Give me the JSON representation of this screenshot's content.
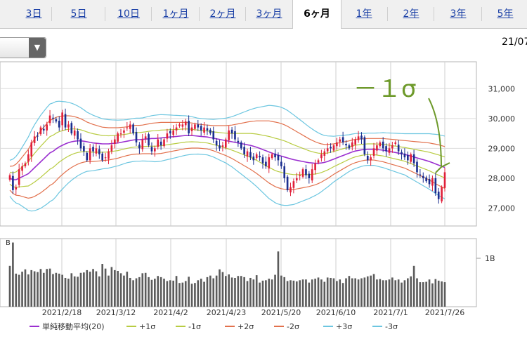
{
  "tabs": [
    {
      "label": "3日",
      "active": false
    },
    {
      "label": "5日",
      "active": false
    },
    {
      "label": "10日",
      "active": false
    },
    {
      "label": "1ヶ月",
      "active": false
    },
    {
      "label": "2ヶ月",
      "active": false
    },
    {
      "label": "3ヶ月",
      "active": false
    },
    {
      "label": "6ヶ月",
      "active": true
    },
    {
      "label": "1年",
      "active": false
    },
    {
      "label": "2年",
      "active": false
    },
    {
      "label": "3年",
      "active": false
    },
    {
      "label": "5年",
      "active": false
    }
  ],
  "header": {
    "date_label": "21/07"
  },
  "annotation": {
    "text": "－１σ",
    "color": "#6e9a2b"
  },
  "volume_axis": {
    "side_label": "B",
    "tick_label": "1B"
  },
  "legend": [
    {
      "label": "単純移動平均(20)",
      "color": "#9b30d0"
    },
    {
      "label": "+1σ",
      "color": "#b8cc42"
    },
    {
      "label": "-1σ",
      "color": "#b8cc42"
    },
    {
      "label": "+2σ",
      "color": "#e2714d"
    },
    {
      "label": "-2σ",
      "color": "#e2714d"
    },
    {
      "label": "+3σ",
      "color": "#6cc6e0"
    },
    {
      "label": "-3σ",
      "color": "#6cc6e0"
    }
  ],
  "chart_data": {
    "type": "candlestick",
    "y_ticks": [
      31000,
      30000,
      29000,
      28000,
      27000
    ],
    "y_tick_labels": [
      "31,000",
      "30,000",
      "29,000",
      "28,000",
      "27,000"
    ],
    "ylim": [
      26400,
      31900
    ],
    "x_tick_labels": [
      "2021/2/18",
      "2021/3/12",
      "2021/4/2",
      "2021/4/23",
      "2021/5/20",
      "2021/6/10",
      "2021/7/1",
      "2021/7/26"
    ],
    "colors": {
      "up": "#e0203a",
      "down": "#1a2e8f",
      "volume": "#5b5b5b"
    },
    "close": [
      28100,
      27600,
      27700,
      28300,
      28400,
      28500,
      28800,
      29200,
      29400,
      29400,
      29700,
      29600,
      29800,
      30100,
      30000,
      29900,
      29700,
      30200,
      29700,
      29800,
      29500,
      29600,
      29300,
      29000,
      28900,
      28600,
      29000,
      28900,
      29000,
      28800,
      28600,
      28700,
      28900,
      29100,
      29300,
      29500,
      29500,
      29600,
      29700,
      29800,
      29500,
      29200,
      29000,
      29300,
      29400,
      29100,
      28900,
      29000,
      29300,
      29100,
      29300,
      29500,
      29500,
      29600,
      29700,
      29800,
      29800,
      29900,
      29500,
      29700,
      29800,
      29700,
      29600,
      29700,
      29600,
      29500,
      29300,
      29100,
      29000,
      29100,
      29300,
      29600,
      29500,
      29300,
      29200,
      29000,
      28800,
      28900,
      28700,
      28600,
      28800,
      28700,
      28500,
      28400,
      28700,
      28800,
      28700,
      28600,
      28400,
      28000,
      27600,
      27700,
      27900,
      28000,
      28100,
      28300,
      28100,
      28000,
      28300,
      28500,
      28600,
      28800,
      28900,
      29000,
      29000,
      29100,
      29200,
      29300,
      29200,
      29100,
      29000,
      29200,
      29300,
      29400,
      29300,
      28800,
      28600,
      28700,
      29000,
      29100,
      29200,
      29000,
      28900,
      29000,
      29100,
      29200,
      28900,
      28800,
      28700,
      28600,
      28800,
      28500,
      28200,
      28100,
      28000,
      27900,
      27800,
      28000,
      27500,
      27300,
      27700,
      28200
    ],
    "volume": [
      1.05,
      1.65,
      0.85,
      0.82,
      0.9,
      0.96,
      0.83,
      0.94,
      0.91,
      0.89,
      0.97,
      0.87,
      0.97,
      0.98,
      0.84,
      0.87,
      0.85,
      0.82,
      0.74,
      0.72,
      0.86,
      0.78,
      0.77,
      0.87,
      0.88,
      0.94,
      0.9,
      0.97,
      0.91,
      0.78,
      1.1,
      0.98,
      0.8,
      1.02,
      0.94,
      0.92,
      0.86,
      0.8,
      0.9,
      0.74,
      0.68,
      0.73,
      0.76,
      0.86,
      0.87,
      0.76,
      0.69,
      0.72,
      0.79,
      0.76,
      0.72,
      0.66,
      0.68,
      0.67,
      0.79,
      0.61,
      0.62,
      0.66,
      0.77,
      0.59,
      0.61,
      0.68,
      0.72,
      0.64,
      0.76,
      0.8,
      0.73,
      0.8,
      0.96,
      0.89,
      0.79,
      0.83,
      0.75,
      0.74,
      0.79,
      0.79,
      0.76,
      0.66,
      0.74,
      0.7,
      0.81,
      0.62,
      0.67,
      0.68,
      0.72,
      0.7,
      0.82,
      1.42,
      0.8,
      0.76,
      0.66,
      0.68,
      0.67,
      0.65,
      0.68,
      0.7,
      0.7,
      0.62,
      0.7,
      0.72,
      0.75,
      0.7,
      0.64,
      0.75,
      0.74,
      0.73,
      0.66,
      0.7,
      0.61,
      0.73,
      0.79,
      0.73,
      0.73,
      0.7,
      0.73,
      0.75,
      0.78,
      0.8,
      0.84,
      0.7,
      0.71,
      0.68,
      0.68,
      0.7,
      0.75,
      0.68,
      0.7,
      0.62,
      0.68,
      0.73,
      0.78,
      1.05,
      0.73,
      0.63,
      0.63,
      0.64,
      0.7,
      0.6,
      0.71,
      0.67,
      0.65,
      0.63
    ],
    "sma20": [
      28000,
      27950,
      27950,
      28000,
      28050,
      28100,
      28150,
      28250,
      28350,
      28450,
      28550,
      28650,
      28750,
      28850,
      28900,
      28980,
      29050,
      29100,
      29150,
      29190,
      29220,
      29240,
      29250,
      29250,
      29240,
      29220,
      29200,
      29180,
      29170,
      29160,
      29150,
      29150,
      29150,
      29160,
      29170,
      29180,
      29200,
      29220,
      29240,
      29260,
      29280,
      29290,
      29290,
      29300,
      29310,
      29320,
      29330,
      29330,
      29340,
      29350,
      29360,
      29370,
      29380,
      29390,
      29400,
      29410,
      29420,
      29430,
      29430,
      29430,
      29420,
      29410,
      29400,
      29390,
      29380,
      29360,
      29340,
      29320,
      29300,
      29280,
      29260,
      29240,
      29220,
      29200,
      29180,
      29160,
      29140,
      29120,
      29100,
      29070,
      29040,
      29000,
      28960,
      28920,
      28880,
      28840,
      28800,
      28770,
      28740,
      28710,
      28680,
      28650,
      28620,
      28600,
      28580,
      28560,
      28540,
      28520,
      28510,
      28500,
      28500,
      28510,
      28530,
      28560,
      28600,
      28640,
      28680,
      28720,
      28760,
      28800,
      28840,
      28880,
      28910,
      28930,
      28950,
      28960,
      28970,
      28970,
      28970,
      28960,
      28950,
      28940,
      28920,
      28900,
      28880,
      28860,
      28840,
      28820,
      28800,
      28770,
      28740,
      28710,
      28680,
      28650,
      28620,
      28590,
      28560,
      28520,
      28480,
      28440,
      28400,
      28360
    ],
    "sigma": [
      200,
      230,
      260,
      290,
      330,
      370,
      410,
      450,
      480,
      500,
      520,
      530,
      540,
      545,
      540,
      530,
      510,
      490,
      470,
      450,
      430,
      410,
      390,
      370,
      350,
      330,
      320,
      310,
      300,
      290,
      280,
      275,
      270,
      265,
      260,
      255,
      250,
      245,
      240,
      240,
      240,
      240,
      240,
      240,
      245,
      250,
      255,
      260,
      260,
      260,
      255,
      250,
      245,
      240,
      235,
      230,
      225,
      220,
      215,
      210,
      205,
      200,
      200,
      200,
      200,
      205,
      210,
      220,
      230,
      240,
      250,
      265,
      280,
      300,
      320,
      340,
      360,
      380,
      400,
      420,
      440,
      460,
      480,
      500,
      520,
      530,
      540,
      545,
      545,
      540,
      530,
      515,
      500,
      480,
      460,
      440,
      420,
      400,
      380,
      360,
      340,
      320,
      300,
      285,
      270,
      255,
      245,
      235,
      225,
      215,
      205,
      200,
      195,
      190,
      185,
      180,
      180,
      180,
      180,
      185,
      190,
      195,
      200,
      205,
      210,
      215,
      220,
      225,
      230,
      240,
      250,
      260,
      270,
      280,
      290,
      300,
      310,
      320,
      330,
      340,
      345,
      350
    ]
  }
}
